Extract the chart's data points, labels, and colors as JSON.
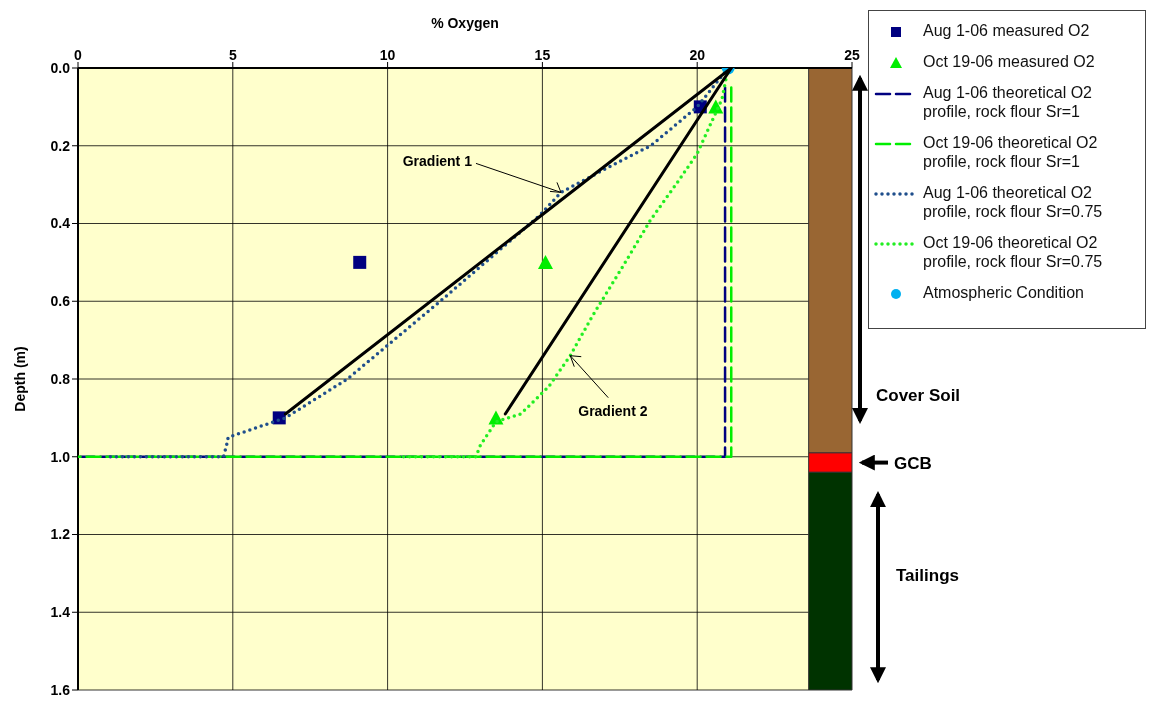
{
  "chart_data": {
    "type": "scatter",
    "xlabel": "% Oxygen",
    "ylabel": "Depth (m)",
    "xlim": [
      0,
      25
    ],
    "xticks": [
      0,
      5,
      10,
      15,
      20,
      25
    ],
    "ylim": [
      1.6,
      0
    ],
    "yticks": [
      {
        "value": 0,
        "label": "0.0"
      },
      0.2,
      0.4,
      0.6,
      0.8,
      {
        "value": 1,
        "label": "1.0"
      },
      1.2,
      1.4,
      1.6
    ],
    "grid": true,
    "legend": "top right",
    "series": [
      {
        "name": "Aug 1-06 measured O2",
        "type": "scatter",
        "marker": "square",
        "color": "#000080",
        "x": [
          6.5,
          9.1,
          20.1
        ],
        "values": [
          0.9,
          0.5,
          0.1
        ]
      },
      {
        "name": "Oct 19-06 measured O2",
        "type": "scatter",
        "marker": "triangle",
        "color": "#00ee00",
        "x": [
          13.5,
          15.1,
          20.6
        ],
        "values": [
          0.9,
          0.5,
          0.1
        ]
      },
      {
        "name": "Aug 1-06 theoretical O2 profile, rock flour Sr=1",
        "type": "line",
        "marker": "none",
        "line_style": "dashed",
        "color": "#000080",
        "x": [
          20.9,
          20.9,
          0
        ],
        "values": [
          0.05,
          1.0,
          1.0
        ]
      },
      {
        "name": "Oct 19-06 theoretical O2 profile, rock flour Sr=1",
        "type": "line",
        "marker": "none",
        "line_style": "dashed",
        "color": "#00ee00",
        "x": [
          21.1,
          21.1,
          0
        ],
        "values": [
          0.05,
          1.0,
          1.0
        ]
      },
      {
        "name": "Aug 1-06 theoretical O2 profile, rock flour Sr=0.75",
        "type": "line",
        "marker": "none",
        "line_style": "dotted",
        "color": "#1f4e8c",
        "x": [
          21,
          20,
          18.5,
          17.5,
          15.6,
          14.9,
          11.7,
          8.7,
          6.7,
          4.85,
          4.8,
          4.7,
          1
        ],
        "values": [
          0,
          0.1,
          0.2,
          0.24,
          0.32,
          0.38,
          0.6,
          0.8,
          0.9,
          0.95,
          0.97,
          1.0,
          1.0
        ]
      },
      {
        "name": "Oct 19-06 theoretical O2 profile, rock flour Sr=0.75",
        "type": "line",
        "marker": "none",
        "line_style": "dotted",
        "color": "#22ee22",
        "x": [
          21,
          20.8,
          20.0,
          19.4,
          18.5,
          17.6,
          16.6,
          15.9,
          15.2,
          14.3,
          13.5,
          13.0,
          12.85,
          10.5
        ],
        "values": [
          0,
          0.08,
          0.22,
          0.29,
          0.39,
          0.51,
          0.64,
          0.74,
          0.82,
          0.89,
          0.91,
          0.97,
          1.0,
          1.0
        ]
      },
      {
        "name": "Atmospheric Condition",
        "type": "scatter",
        "marker": "circle",
        "color": "#00b0f0",
        "x": [
          21
        ],
        "values": [
          0
        ]
      },
      {
        "type": "line",
        "marker": "none",
        "line_style": "solid",
        "color": "#000000",
        "x": [
          6.7,
          21.1
        ],
        "values": [
          0.89,
          0
        ]
      },
      {
        "type": "line",
        "marker": "none",
        "line_style": "solid",
        "color": "#000000",
        "x": [
          13.8,
          21.1
        ],
        "values": [
          0.89,
          0
        ]
      }
    ],
    "bands": [
      {
        "axis": "y",
        "from": 0,
        "to": 0.99,
        "label": "Cover Soil",
        "color": "#996633"
      },
      {
        "axis": "y",
        "from": 0.99,
        "to": 1.04,
        "label": "GCB",
        "color": "#ff0000"
      },
      {
        "axis": "y",
        "from": 1.04,
        "to": 1.6,
        "label": "Tailings",
        "color": "#003300"
      }
    ],
    "annotations": [
      {
        "text": "Gradient 1",
        "x": 15.6,
        "y": 0.32
      },
      {
        "text": "Gradient 2",
        "x": 15.9,
        "y": 0.74
      }
    ]
  }
}
